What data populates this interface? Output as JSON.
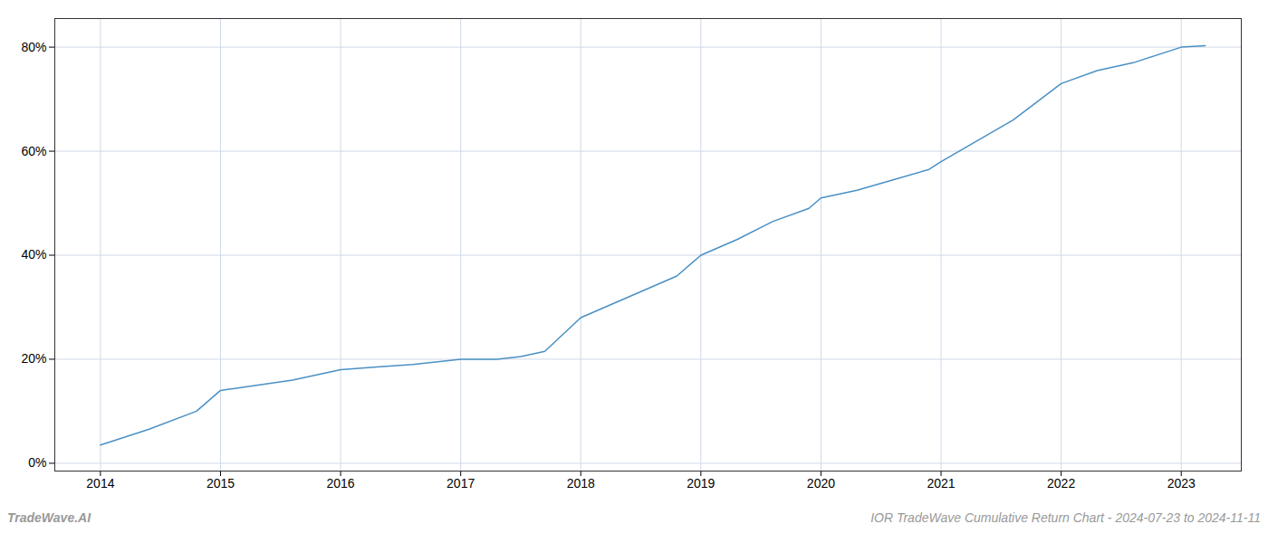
{
  "chart_data": {
    "type": "line",
    "x": [
      2014.0,
      2014.4,
      2014.8,
      2015.0,
      2015.3,
      2015.6,
      2016.0,
      2016.3,
      2016.6,
      2017.0,
      2017.3,
      2017.5,
      2017.7,
      2018.0,
      2018.2,
      2018.5,
      2018.8,
      2019.0,
      2019.3,
      2019.6,
      2019.9,
      2020.0,
      2020.3,
      2020.6,
      2020.9,
      2021.0,
      2021.3,
      2021.6,
      2022.0,
      2022.3,
      2022.6,
      2023.0,
      2023.2
    ],
    "values": [
      0.035,
      0.065,
      0.1,
      0.14,
      0.15,
      0.16,
      0.18,
      0.185,
      0.19,
      0.2,
      0.2,
      0.205,
      0.215,
      0.28,
      0.3,
      0.33,
      0.36,
      0.4,
      0.43,
      0.465,
      0.49,
      0.51,
      0.525,
      0.545,
      0.565,
      0.58,
      0.62,
      0.66,
      0.73,
      0.755,
      0.77,
      0.8,
      0.803
    ],
    "color": "#4a90c4",
    "xlim": [
      2013.62,
      2023.5
    ],
    "ylim": [
      -0.015,
      0.855
    ],
    "xticks": [
      2014,
      2015,
      2016,
      2017,
      2018,
      2019,
      2020,
      2021,
      2022,
      2023
    ],
    "yticks": [
      {
        "value": 0.0,
        "label": "0%"
      },
      {
        "value": 0.2,
        "label": "20%"
      },
      {
        "value": 0.4,
        "label": "40%"
      },
      {
        "value": 0.6,
        "label": "60%"
      },
      {
        "value": 0.8,
        "label": "80%"
      }
    ],
    "grid": true,
    "annotations": [
      "TradeWave.AI",
      "IOR TradeWave Cumulative Return Chart - 2024-07-23 to 2024-11-11"
    ]
  }
}
